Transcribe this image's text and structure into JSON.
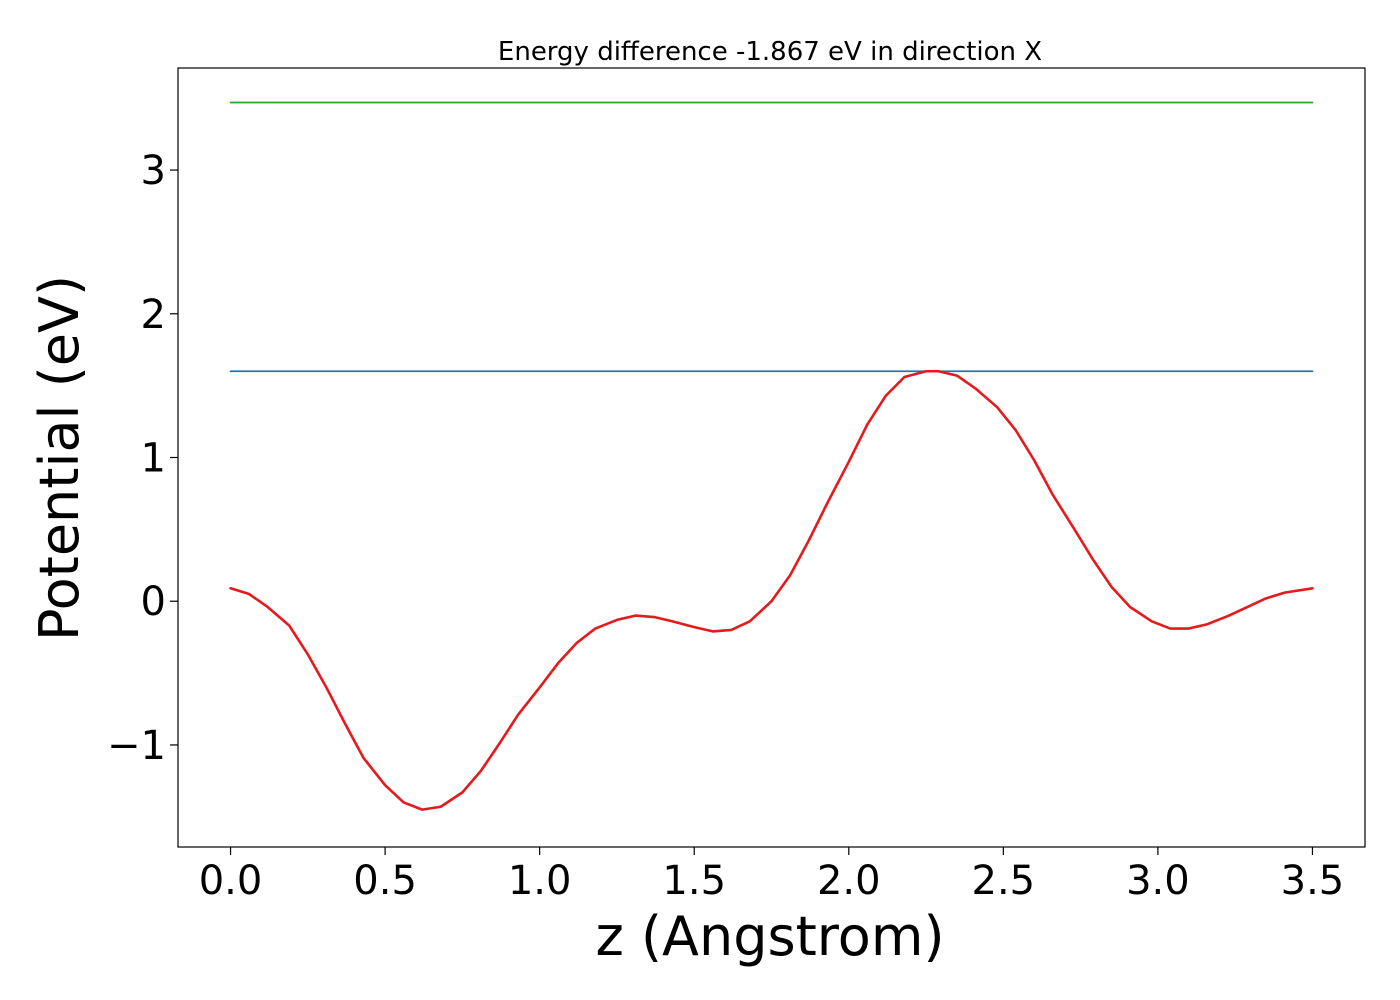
{
  "chart_data": {
    "type": "line",
    "title": "Energy difference -1.867 eV in direction X",
    "xlabel": "z (Angstrom)",
    "ylabel": "Potential (eV)",
    "xlim": [
      -0.17,
      3.67
    ],
    "ylim": [
      -1.71,
      3.71
    ],
    "xticks": [
      0.0,
      0.5,
      1.0,
      1.5,
      2.0,
      2.5,
      3.0,
      3.5
    ],
    "xtick_labels": [
      "0.0",
      "0.5",
      "1.0",
      "1.5",
      "2.0",
      "2.5",
      "3.0",
      "3.5"
    ],
    "yticks": [
      -1,
      0,
      1,
      2,
      3
    ],
    "ytick_labels": [
      "−1",
      "0",
      "1",
      "2",
      "3"
    ],
    "grid": false,
    "series": [
      {
        "color": "#2ca02c",
        "x": [
          0.0,
          3.5
        ],
        "y": [
          3.47,
          3.47
        ]
      },
      {
        "color": "#1f77b4",
        "x": [
          0.0,
          3.5
        ],
        "y": [
          1.6,
          1.6
        ]
      },
      {
        "color": "#e41a1c",
        "x": [
          0.0,
          0.06,
          0.12,
          0.19,
          0.25,
          0.31,
          0.37,
          0.43,
          0.5,
          0.56,
          0.62,
          0.68,
          0.75,
          0.81,
          0.87,
          0.93,
          1.0,
          1.06,
          1.12,
          1.18,
          1.25,
          1.31,
          1.37,
          1.43,
          1.5,
          1.56,
          1.62,
          1.68,
          1.75,
          1.81,
          1.87,
          1.93,
          2.0,
          2.06,
          2.12,
          2.18,
          2.25,
          2.29,
          2.35,
          2.41,
          2.48,
          2.54,
          2.6,
          2.66,
          2.73,
          2.79,
          2.85,
          2.91,
          2.98,
          3.04,
          3.1,
          3.16,
          3.23,
          3.29,
          3.35,
          3.41,
          3.5
        ],
        "y": [
          0.09,
          0.05,
          -0.04,
          -0.17,
          -0.37,
          -0.6,
          -0.85,
          -1.09,
          -1.28,
          -1.4,
          -1.45,
          -1.43,
          -1.33,
          -1.18,
          -0.99,
          -0.79,
          -0.6,
          -0.43,
          -0.29,
          -0.19,
          -0.13,
          -0.1,
          -0.11,
          -0.14,
          -0.18,
          -0.21,
          -0.2,
          -0.14,
          0.0,
          0.18,
          0.42,
          0.68,
          0.97,
          1.23,
          1.43,
          1.56,
          1.6,
          1.6,
          1.57,
          1.48,
          1.35,
          1.19,
          0.98,
          0.74,
          0.5,
          0.29,
          0.1,
          -0.04,
          -0.14,
          -0.19,
          -0.19,
          -0.16,
          -0.1,
          -0.04,
          0.02,
          0.06,
          0.09
        ]
      }
    ]
  }
}
